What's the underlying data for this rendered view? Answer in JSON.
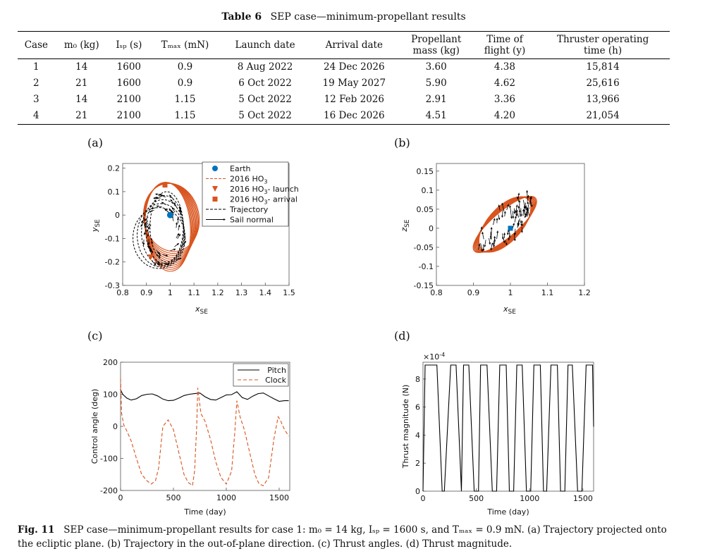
{
  "table": {
    "label": "Table 6",
    "title": "SEP case—minimum-propellant results",
    "headers": [
      {
        "line1": "Case",
        "line2": ""
      },
      {
        "line1": "m₀ (kg)",
        "line2": ""
      },
      {
        "line1": "Iₛₚ (s)",
        "line2": ""
      },
      {
        "line1": "Tₘₐₓ (mN)",
        "line2": ""
      },
      {
        "line1": "Launch date",
        "line2": ""
      },
      {
        "line1": "Arrival date",
        "line2": ""
      },
      {
        "line1": "Propellant",
        "line2": "mass (kg)"
      },
      {
        "line1": "Time of",
        "line2": "flight (y)"
      },
      {
        "line1": "Thruster operating",
        "line2": "time (h)"
      }
    ],
    "rows": [
      [
        "1",
        "14",
        "1600",
        "0.9",
        "8 Aug 2022",
        "24 Dec 2026",
        "3.60",
        "4.38",
        "15,814"
      ],
      [
        "2",
        "21",
        "1600",
        "0.9",
        "6 Oct 2022",
        "19 May 2027",
        "5.90",
        "4.62",
        "25,616"
      ],
      [
        "3",
        "14",
        "2100",
        "1.15",
        "5 Oct 2022",
        "12 Feb 2026",
        "2.91",
        "3.36",
        "13,966"
      ],
      [
        "4",
        "21",
        "2100",
        "1.15",
        "5 Oct 2022",
        "16 Dec 2026",
        "4.51",
        "4.20",
        "21,054"
      ]
    ]
  },
  "colors": {
    "orange": "#d9541e",
    "blue": "#0072bd",
    "black": "#000000"
  },
  "chart_data": [
    {
      "panel": "(a)",
      "type": "line",
      "xlabel": "x",
      "xlabel_sub": "SE",
      "ylabel": "y",
      "ylabel_sub": "SE",
      "xlim": [
        0.8,
        1.5
      ],
      "ylim": [
        -0.3,
        0.22
      ],
      "xticks": [
        "0.8",
        "0.9",
        "1",
        "1.1",
        "1.2",
        "1.3",
        "1.4",
        "1.5"
      ],
      "xtick_values": [
        0.8,
        0.9,
        1.0,
        1.1,
        1.2,
        1.3,
        1.4,
        1.5
      ],
      "yticks": [
        "0.2",
        "0.1",
        "0",
        "-0.1",
        "-0.2",
        "-0.3"
      ],
      "ytick_values": [
        0.2,
        0.1,
        0.0,
        -0.1,
        -0.2,
        -0.3
      ],
      "earth": [
        1.0,
        0.0
      ],
      "launch": [
        0.918,
        -0.18
      ],
      "arrival": [
        0.978,
        0.128
      ],
      "legend": [
        {
          "label": "Earth",
          "sub": ""
        },
        {
          "label": "2016 HO",
          "sub": "3"
        },
        {
          "label": "2016 HO",
          "sub": "3",
          "suffix": "- launch"
        },
        {
          "label": "2016 HO",
          "sub": "3",
          "suffix": "- arrival"
        },
        {
          "label": "Trajectory",
          "sub": ""
        },
        {
          "label": "Sail normal",
          "sub": ""
        }
      ]
    },
    {
      "panel": "(b)",
      "type": "line",
      "xlabel": "x",
      "xlabel_sub": "SE",
      "ylabel": "z",
      "ylabel_sub": "SE",
      "xlim": [
        0.8,
        1.2
      ],
      "ylim": [
        -0.15,
        0.17
      ],
      "xticks": [
        "0.8",
        "0.9",
        "1",
        "1.1",
        "1.2"
      ],
      "xtick_values": [
        0.8,
        0.9,
        1.0,
        1.1,
        1.2
      ],
      "yticks": [
        "0.15",
        "0.1",
        "0.05",
        "0",
        "-0.05",
        "-0.1",
        "-0.15"
      ],
      "ytick_values": [
        0.15,
        0.1,
        0.05,
        0.0,
        -0.05,
        -0.1,
        -0.15
      ],
      "earth": [
        1.0,
        0.0
      ]
    },
    {
      "panel": "(c)",
      "type": "line",
      "xlabel": "Time (day)",
      "ylabel": "Control angle (deg)",
      "xlim": [
        0,
        1600
      ],
      "ylim": [
        -200,
        200
      ],
      "xticks": [
        "0",
        "500",
        "1000",
        "1500"
      ],
      "xtick_values": [
        0,
        500,
        1000,
        1500
      ],
      "yticks": [
        "200",
        "100",
        "0",
        "-100",
        "-200"
      ],
      "ytick_values": [
        200,
        100,
        0,
        -100,
        -200
      ],
      "series": [
        {
          "name": "Pitch",
          "x": [
            0,
            20,
            60,
            100,
            150,
            200,
            250,
            300,
            350,
            400,
            450,
            500,
            550,
            600,
            650,
            700,
            750,
            800,
            850,
            900,
            950,
            1000,
            1050,
            1100,
            1150,
            1200,
            1250,
            1300,
            1350,
            1400,
            1450,
            1500,
            1550,
            1590
          ],
          "y": [
            115,
            100,
            88,
            82,
            86,
            96,
            100,
            101,
            95,
            85,
            80,
            81,
            88,
            96,
            100,
            102,
            104,
            92,
            84,
            82,
            90,
            98,
            99,
            108,
            90,
            84,
            94,
            102,
            104,
            95,
            86,
            78,
            80,
            80
          ]
        },
        {
          "name": "Clock",
          "x": [
            0,
            10,
            30,
            60,
            100,
            150,
            200,
            250,
            290,
            330,
            360,
            400,
            450,
            500,
            550,
            600,
            640,
            680,
            700,
            720,
            730,
            760,
            800,
            850,
            900,
            950,
            1000,
            1050,
            1080,
            1100,
            1130,
            1170,
            1220,
            1270,
            1310,
            1350,
            1400,
            1450,
            1490,
            1510,
            1550,
            1590
          ],
          "y": [
            150,
            40,
            5,
            -15,
            -45,
            -100,
            -150,
            -170,
            -180,
            -170,
            -130,
            0,
            20,
            -10,
            -80,
            -150,
            -175,
            -185,
            -140,
            0,
            120,
            40,
            15,
            -40,
            -110,
            -160,
            -180,
            -140,
            -20,
            80,
            30,
            -10,
            -80,
            -150,
            -180,
            -185,
            -160,
            -40,
            30,
            20,
            -10,
            -30
          ]
        }
      ]
    },
    {
      "panel": "(d)",
      "type": "line",
      "xlabel": "Time (day)",
      "ylabel": "Thrust magnitude (N)",
      "multiplier": "×10",
      "multiplier_exp": "-4",
      "xlim": [
        0,
        1600
      ],
      "ylim": [
        0,
        9.2
      ],
      "xticks": [
        "0",
        "500",
        "1000",
        "1500"
      ],
      "xtick_values": [
        0,
        500,
        1000,
        1500
      ],
      "yticks": [
        "8",
        "6",
        "4",
        "2",
        "0"
      ],
      "ytick_values": [
        8,
        6,
        4,
        2,
        0
      ],
      "series": [
        {
          "name": "Thrust",
          "x": [
            0,
            20,
            60,
            130,
            180,
            200,
            260,
            310,
            360,
            380,
            430,
            480,
            520,
            540,
            600,
            650,
            690,
            720,
            780,
            810,
            850,
            880,
            930,
            970,
            1010,
            1040,
            1100,
            1130,
            1160,
            1200,
            1260,
            1290,
            1330,
            1360,
            1400,
            1450,
            1490,
            1530,
            1570,
            1590,
            1600
          ],
          "y": [
            0,
            9,
            9,
            9,
            0,
            0,
            9,
            9,
            0,
            9,
            9,
            0,
            0,
            9,
            9,
            0,
            0,
            9,
            9,
            0,
            0,
            9,
            9,
            0,
            0,
            9,
            9,
            0,
            0,
            9,
            9,
            0,
            0,
            9,
            9,
            0,
            0,
            9,
            9,
            9,
            4.6
          ]
        }
      ]
    }
  ],
  "caption": {
    "label": "Fig. 11",
    "text_before": "SEP case—minimum-propellant results for case 1: ",
    "m0": "m₀ = 14 kg",
    "isp": "Iₛₚ = 1600 s",
    "tmax": "Tₘₐₓ = 0.9 mN",
    "text_after": ". (a) Trajectory projected onto the ecliptic plane. (b) Trajectory in the out-of-plane direction. (c) Thrust angles. (d) Thrust magnitude."
  }
}
